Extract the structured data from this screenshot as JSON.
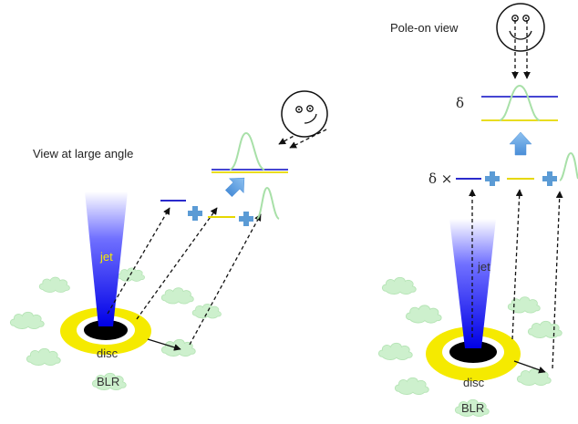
{
  "left_panel": {
    "caption": "View at large angle",
    "jet_label": "jet",
    "disc_label": "disc",
    "blr_label": "BLR",
    "observer_icon": "smiley-face-icon"
  },
  "right_panel": {
    "caption": "Pole-on view",
    "jet_label": "jet",
    "disc_label": "disc",
    "blr_label": "BLR",
    "delta_label": "δ",
    "delta_times_label": "δ ×",
    "observer_icon": "smiley-face-icon"
  },
  "colors": {
    "jet_blue": "#1a1aff",
    "disc_yellow": "#f5ea00",
    "cloud_green": "#cdf0cd",
    "plus_blue": "#5b9bd5",
    "line_blue": "#2b2bcc",
    "line_yellow": "#e6d800",
    "profile_green": "#a8e0a8"
  }
}
